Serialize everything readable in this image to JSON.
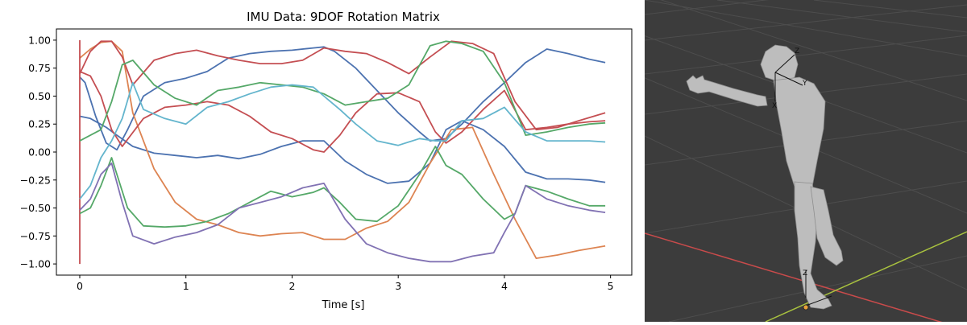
{
  "chart_data": {
    "type": "line",
    "title": "IMU Data: 9DOF Rotation Matrix",
    "xlabel": "Time [s]",
    "ylabel": "",
    "xlim": [
      -0.22,
      5.2
    ],
    "ylim": [
      -1.1,
      1.1
    ],
    "xticks": [
      0,
      1,
      2,
      3,
      4,
      5
    ],
    "yticks": [
      -1.0,
      -0.75,
      -0.5,
      -0.25,
      0.0,
      0.25,
      0.5,
      0.75,
      1.0
    ],
    "ytick_labels": [
      "−1.00",
      "−0.75",
      "−0.50",
      "−0.25",
      "0.00",
      "0.25",
      "0.50",
      "0.75",
      "1.00"
    ],
    "grid": false,
    "legend": false,
    "series": [
      {
        "color": "#4c72b0",
        "x": [
          0,
          0.05,
          0.15,
          0.25,
          0.35,
          0.45,
          0.6,
          0.8,
          1.0,
          1.2,
          1.4,
          1.6,
          1.8,
          2.0,
          2.2,
          2.3,
          2.4,
          2.6,
          2.8,
          3.0,
          3.2,
          3.3,
          3.45,
          3.6,
          3.8,
          4.0,
          4.2,
          4.4,
          4.6,
          4.8,
          4.95
        ],
        "y": [
          0.67,
          0.62,
          0.32,
          0.08,
          0.02,
          0.2,
          0.5,
          0.62,
          0.66,
          0.72,
          0.84,
          0.88,
          0.9,
          0.91,
          0.93,
          0.94,
          0.9,
          0.75,
          0.55,
          0.35,
          0.18,
          0.1,
          0.12,
          0.25,
          0.45,
          0.62,
          0.8,
          0.92,
          0.88,
          0.83,
          0.8
        ]
      },
      {
        "color": "#4c72b0",
        "x": [
          0,
          0.1,
          0.25,
          0.35,
          0.5,
          0.7,
          0.9,
          1.1,
          1.3,
          1.5,
          1.7,
          1.9,
          2.1,
          2.3,
          2.5,
          2.7,
          2.9,
          3.1,
          3.3,
          3.45,
          3.6,
          3.8,
          4.0,
          4.2,
          4.4,
          4.6,
          4.8,
          4.95
        ],
        "y": [
          0.32,
          0.3,
          0.22,
          0.15,
          0.05,
          -0.01,
          -0.03,
          -0.05,
          -0.03,
          -0.06,
          -0.02,
          0.05,
          0.1,
          0.1,
          -0.08,
          -0.2,
          -0.28,
          -0.26,
          -0.1,
          0.2,
          0.28,
          0.2,
          0.05,
          -0.18,
          -0.24,
          -0.24,
          -0.25,
          -0.27
        ]
      },
      {
        "color": "#dd8452",
        "x": [
          0,
          0.1,
          0.2,
          0.3,
          0.4,
          0.5,
          0.7,
          0.9,
          1.1,
          1.3,
          1.5,
          1.7,
          1.9,
          2.1,
          2.3,
          2.5,
          2.7,
          2.9,
          3.1,
          3.3,
          3.5,
          3.7,
          3.9,
          4.1,
          4.3,
          4.5,
          4.7,
          4.95
        ],
        "y": [
          0.84,
          0.92,
          0.98,
          0.99,
          0.9,
          0.35,
          -0.15,
          -0.45,
          -0.6,
          -0.65,
          -0.72,
          -0.75,
          -0.73,
          -0.72,
          -0.78,
          -0.78,
          -0.68,
          -0.62,
          -0.45,
          -0.1,
          0.2,
          0.22,
          -0.2,
          -0.6,
          -0.95,
          -0.92,
          -0.88,
          -0.84
        ]
      },
      {
        "color": "#c44e52",
        "x": [
          0,
          0.0001,
          0.0002
        ],
        "y": [
          -1.0,
          0.0,
          1.0
        ]
      },
      {
        "color": "#c44e52",
        "x": [
          0,
          0.1,
          0.2,
          0.3,
          0.4,
          0.5,
          0.7,
          0.9,
          1.1,
          1.3,
          1.5,
          1.7,
          1.9,
          2.1,
          2.3,
          2.5,
          2.7,
          2.9,
          3.1,
          3.3,
          3.5,
          3.7,
          3.9,
          4.1,
          4.3,
          4.5,
          4.7,
          4.95
        ],
        "y": [
          0.7,
          0.9,
          0.99,
          0.99,
          0.85,
          0.6,
          0.82,
          0.88,
          0.91,
          0.86,
          0.82,
          0.79,
          0.79,
          0.82,
          0.93,
          0.9,
          0.88,
          0.8,
          0.7,
          0.85,
          0.99,
          0.97,
          0.88,
          0.45,
          0.2,
          0.22,
          0.28,
          0.35
        ]
      },
      {
        "color": "#c44e52",
        "x": [
          0,
          0.1,
          0.2,
          0.3,
          0.4,
          0.6,
          0.8,
          1.0,
          1.2,
          1.4,
          1.6,
          1.8,
          2.0,
          2.2,
          2.3,
          2.45,
          2.6,
          2.8,
          3.0,
          3.2,
          3.35,
          3.45,
          3.6,
          3.8,
          4.0,
          4.2,
          4.4,
          4.6,
          4.8,
          4.95
        ],
        "y": [
          0.72,
          0.68,
          0.5,
          0.2,
          0.05,
          0.3,
          0.4,
          0.42,
          0.45,
          0.42,
          0.32,
          0.18,
          0.12,
          0.02,
          0.0,
          0.15,
          0.35,
          0.52,
          0.53,
          0.45,
          0.18,
          0.08,
          0.18,
          0.38,
          0.55,
          0.2,
          0.22,
          0.25,
          0.27,
          0.28
        ]
      },
      {
        "color": "#55a868",
        "x": [
          0,
          0.1,
          0.2,
          0.3,
          0.4,
          0.5,
          0.7,
          0.9,
          1.1,
          1.3,
          1.5,
          1.7,
          1.9,
          2.1,
          2.3,
          2.5,
          2.7,
          2.9,
          3.1,
          3.3,
          3.45,
          3.6,
          3.8,
          4.0,
          4.2,
          4.4,
          4.6,
          4.8,
          4.95
        ],
        "y": [
          0.1,
          0.15,
          0.2,
          0.45,
          0.78,
          0.82,
          0.6,
          0.48,
          0.42,
          0.55,
          0.58,
          0.62,
          0.6,
          0.58,
          0.52,
          0.42,
          0.45,
          0.48,
          0.6,
          0.95,
          0.99,
          0.97,
          0.9,
          0.62,
          0.15,
          0.18,
          0.22,
          0.25,
          0.26
        ]
      },
      {
        "color": "#55a868",
        "x": [
          0,
          0.1,
          0.2,
          0.3,
          0.45,
          0.6,
          0.8,
          1.0,
          1.2,
          1.4,
          1.6,
          1.8,
          2.0,
          2.2,
          2.3,
          2.45,
          2.6,
          2.8,
          3.0,
          3.2,
          3.35,
          3.45,
          3.6,
          3.8,
          4.0,
          4.1,
          4.2,
          4.4,
          4.6,
          4.8,
          4.95
        ],
        "y": [
          -0.55,
          -0.5,
          -0.3,
          -0.05,
          -0.5,
          -0.66,
          -0.67,
          -0.66,
          -0.62,
          -0.55,
          -0.45,
          -0.35,
          -0.4,
          -0.36,
          -0.32,
          -0.45,
          -0.6,
          -0.62,
          -0.48,
          -0.2,
          0.05,
          -0.12,
          -0.2,
          -0.42,
          -0.6,
          -0.55,
          -0.3,
          -0.35,
          -0.42,
          -0.48,
          -0.48
        ]
      },
      {
        "color": "#8172b3",
        "x": [
          0,
          0.1,
          0.2,
          0.3,
          0.4,
          0.5,
          0.7,
          0.9,
          1.1,
          1.3,
          1.5,
          1.7,
          1.9,
          2.1,
          2.3,
          2.5,
          2.7,
          2.9,
          3.1,
          3.3,
          3.5,
          3.7,
          3.9,
          4.0,
          4.1,
          4.2,
          4.4,
          4.6,
          4.8,
          4.95
        ],
        "y": [
          -0.52,
          -0.42,
          -0.2,
          -0.1,
          -0.45,
          -0.75,
          -0.82,
          -0.76,
          -0.72,
          -0.65,
          -0.5,
          -0.45,
          -0.4,
          -0.32,
          -0.28,
          -0.6,
          -0.82,
          -0.9,
          -0.95,
          -0.98,
          -0.98,
          -0.93,
          -0.9,
          -0.72,
          -0.55,
          -0.3,
          -0.42,
          -0.48,
          -0.52,
          -0.54
        ]
      },
      {
        "color": "#64b5cd",
        "x": [
          0,
          0.1,
          0.2,
          0.3,
          0.4,
          0.5,
          0.6,
          0.8,
          1.0,
          1.2,
          1.4,
          1.6,
          1.8,
          2.0,
          2.2,
          2.3,
          2.45,
          2.6,
          2.8,
          3.0,
          3.2,
          3.35,
          3.45,
          3.6,
          3.8,
          4.0,
          4.2,
          4.4,
          4.6,
          4.8,
          4.95
        ],
        "y": [
          -0.42,
          -0.3,
          -0.05,
          0.1,
          0.3,
          0.62,
          0.38,
          0.3,
          0.25,
          0.4,
          0.45,
          0.52,
          0.58,
          0.6,
          0.58,
          0.5,
          0.38,
          0.25,
          0.1,
          0.06,
          0.12,
          0.1,
          0.1,
          0.28,
          0.3,
          0.4,
          0.18,
          0.1,
          0.1,
          0.1,
          0.09
        ]
      }
    ]
  },
  "viewport": {
    "background_color": "#3c3c3c",
    "grid_color": "#4c4c4c",
    "x_axis_color": "#c94b4b",
    "y_axis_color": "#a9c23f",
    "figure_color": "#bdbdbd",
    "gizmo_labels": {
      "z_top": "Z",
      "y_top": "Y",
      "x_top": "X",
      "z_bottom": "Z"
    }
  }
}
